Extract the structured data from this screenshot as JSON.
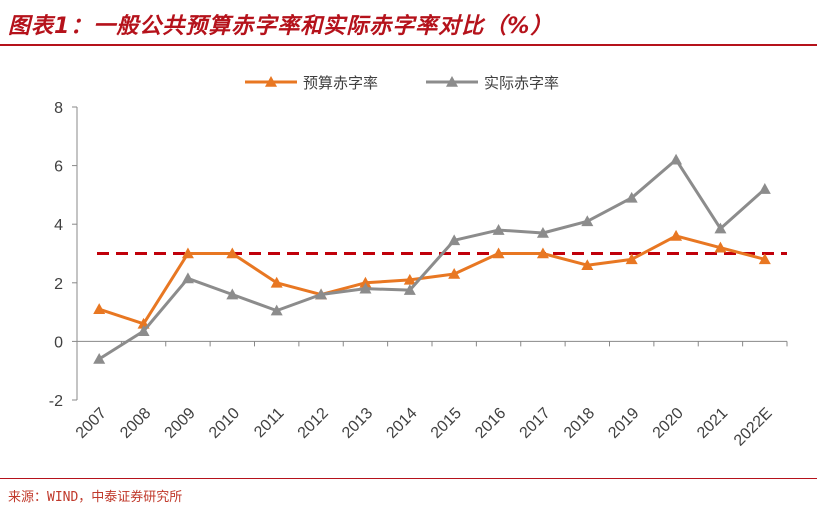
{
  "header": {
    "title": "图表1：一般公共预算赤字率和实际赤字率对比（%）"
  },
  "source": {
    "text": "来源：WIND，中泰证券研究所"
  },
  "colors": {
    "budget": "#e87722",
    "actual": "#8c8c8c",
    "reference": "#c0000a",
    "accent": "#b5121b"
  },
  "chart_data": {
    "type": "line",
    "title": "一般公共预算赤字率和实际赤字率对比（%）",
    "categories": [
      "2007",
      "2008",
      "2009",
      "2010",
      "2011",
      "2012",
      "2013",
      "2014",
      "2015",
      "2016",
      "2017",
      "2018",
      "2019",
      "2020",
      "2021",
      "2022E"
    ],
    "series": [
      {
        "name": "预算赤字率",
        "values": [
          1.1,
          0.6,
          3.0,
          3.0,
          2.0,
          1.6,
          2.0,
          2.1,
          2.3,
          3.0,
          3.0,
          2.6,
          2.8,
          3.6,
          3.2,
          2.8
        ]
      },
      {
        "name": "实际赤字率",
        "values": [
          -0.6,
          0.35,
          2.15,
          1.6,
          1.05,
          1.6,
          1.8,
          1.75,
          3.45,
          3.8,
          3.7,
          4.1,
          4.9,
          6.2,
          3.85,
          5.2
        ]
      }
    ],
    "reference_line": {
      "value": 3.0,
      "style": "dashed"
    },
    "ylim": [
      -2,
      8
    ],
    "yticks": [
      -2,
      0,
      2,
      4,
      6,
      8
    ],
    "xlabel": "",
    "ylabel": "",
    "legend_position": "top"
  }
}
